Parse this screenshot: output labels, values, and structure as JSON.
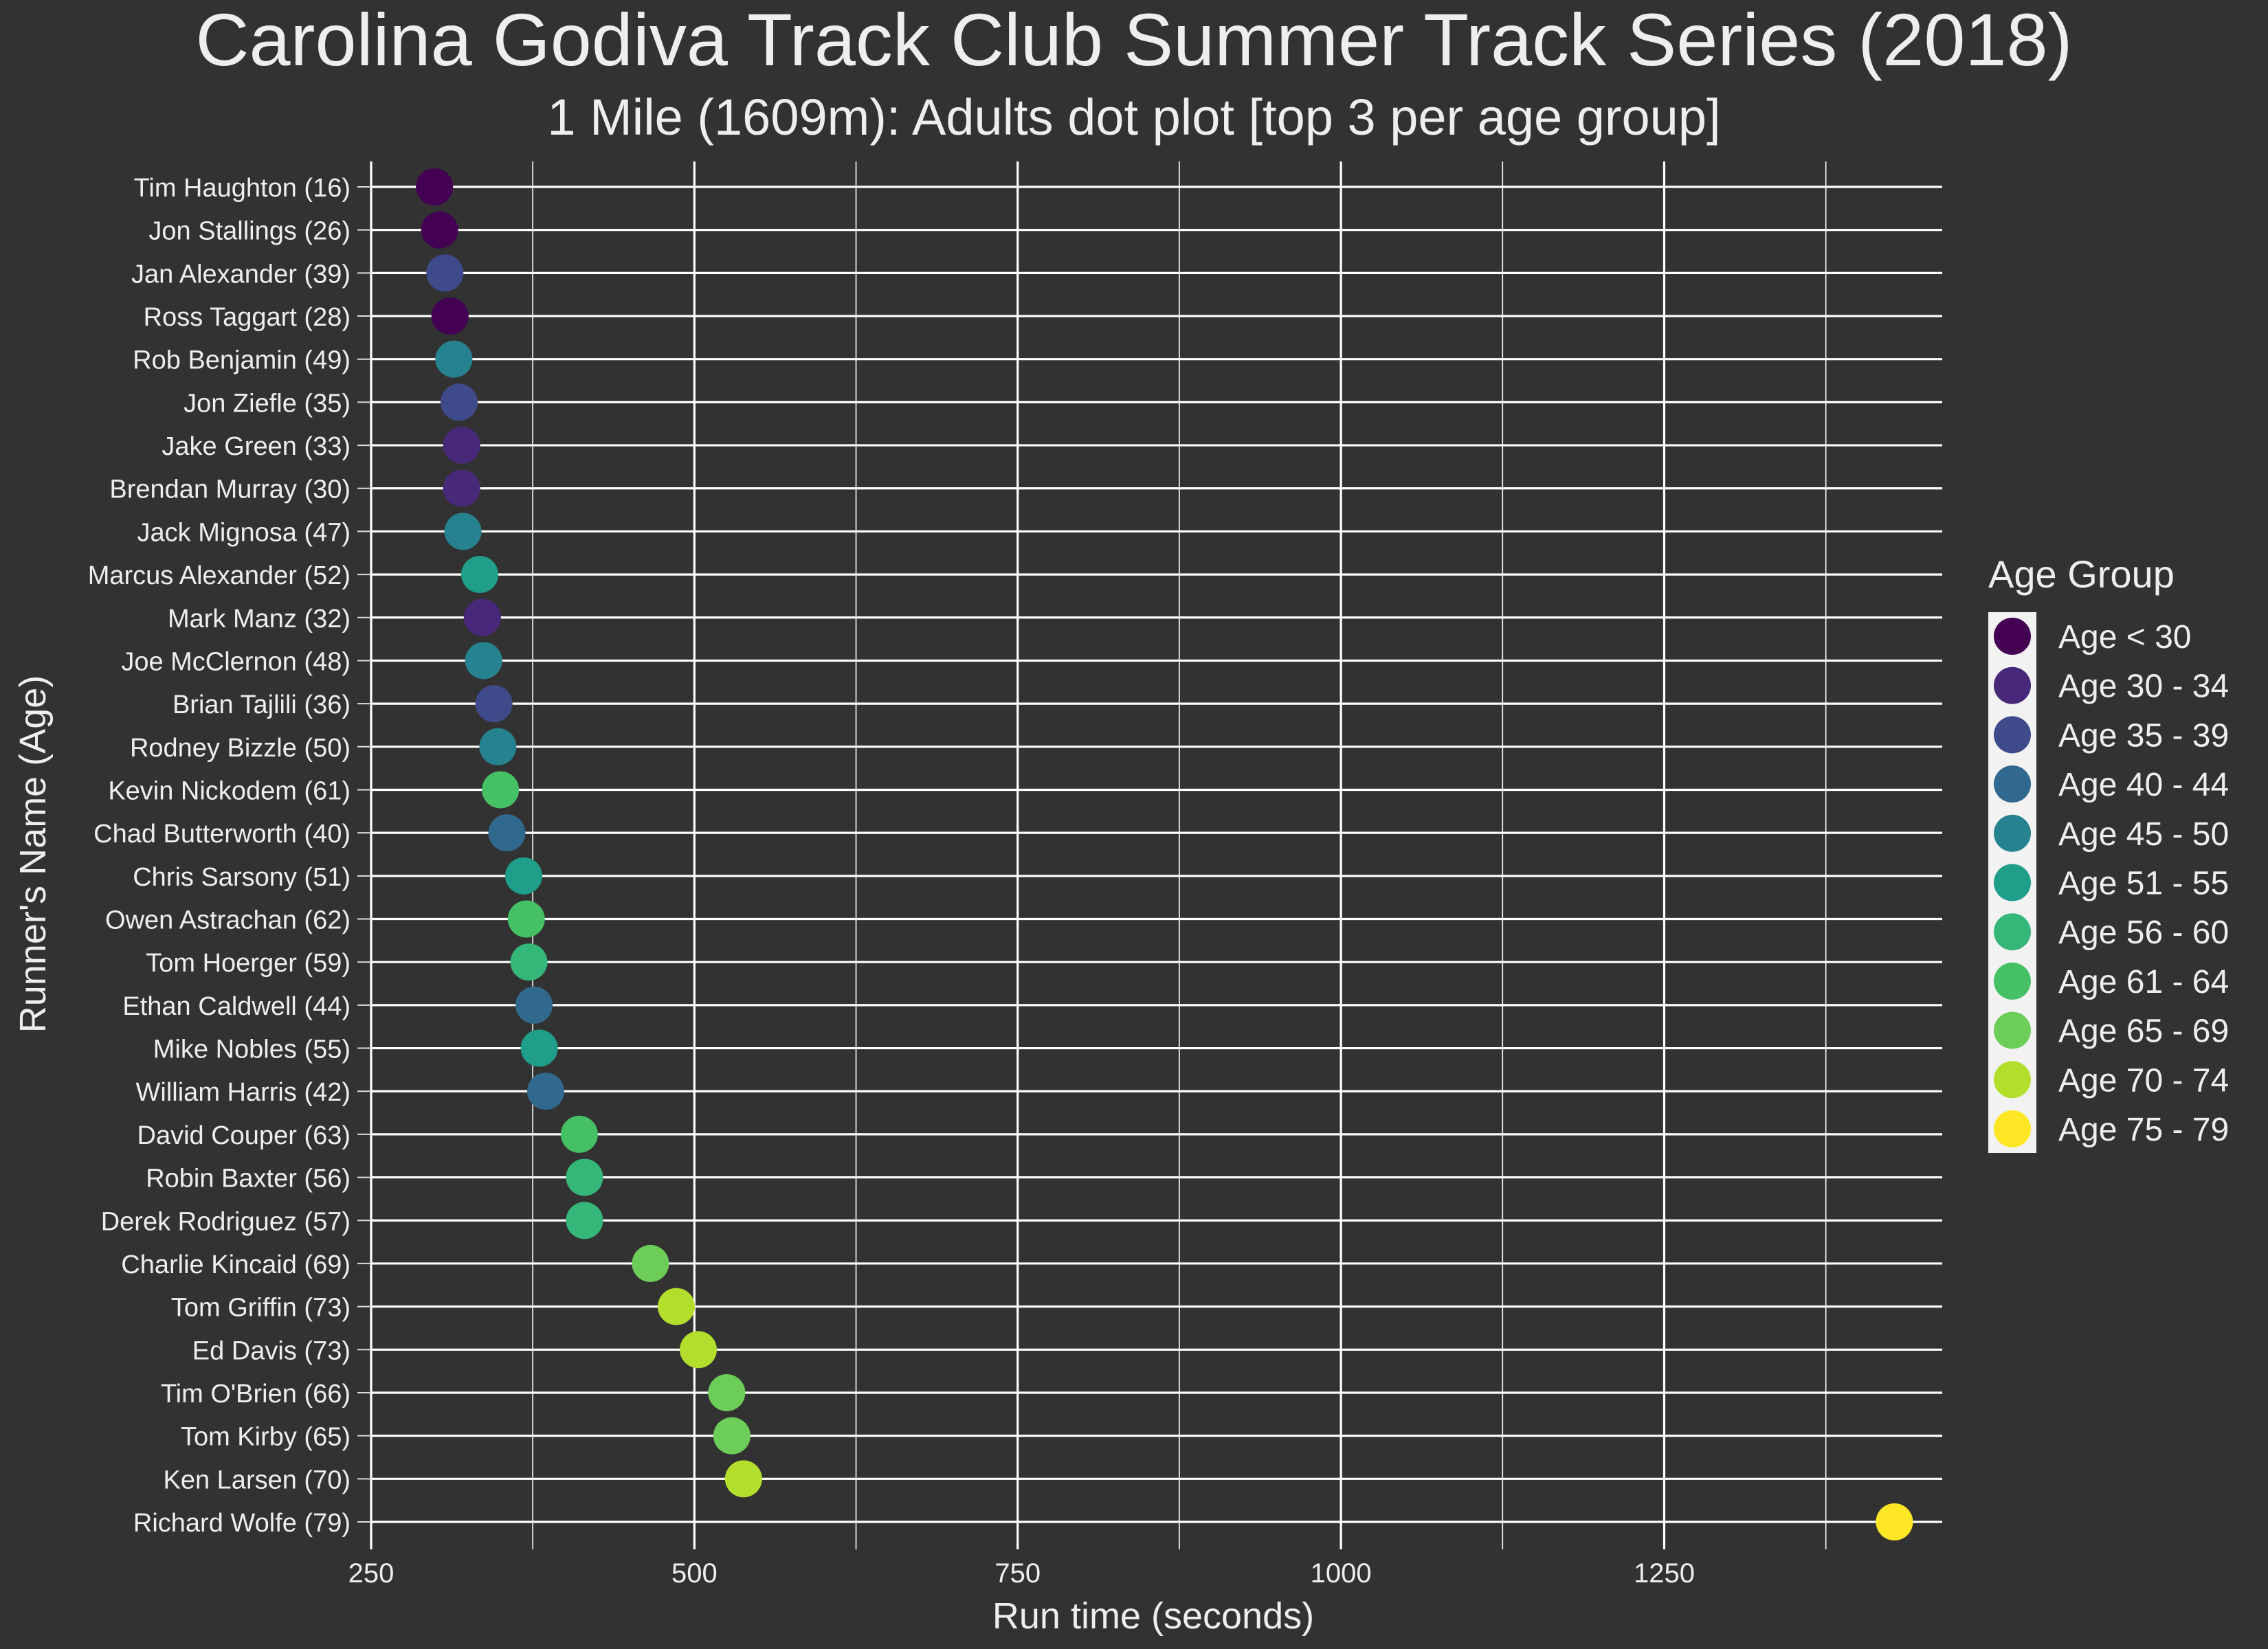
{
  "chart_data": {
    "type": "scatter",
    "title": "Carolina Godiva Track Club Summer Track Series (2018)",
    "subtitle": "1 Mile (1609m): Adults dot plot [top 3 per age group]",
    "xlabel": "Run time (seconds)",
    "ylabel": "Runner's Name (Age)",
    "xlim": [
      250,
      1465
    ],
    "xticks": [
      250,
      500,
      750,
      1000,
      1250
    ],
    "grid": true,
    "legend": {
      "title": "Age Group",
      "position": "right",
      "entries": [
        {
          "label": "Age < 30",
          "color": "#440154"
        },
        {
          "label": "Age 30 - 34",
          "color": "#482878"
        },
        {
          "label": "Age 35 - 39",
          "color": "#3E4A89"
        },
        {
          "label": "Age 40 - 44",
          "color": "#31688E"
        },
        {
          "label": "Age 45 - 50",
          "color": "#26828E"
        },
        {
          "label": "Age 51 - 55",
          "color": "#1F9E89"
        },
        {
          "label": "Age 56 - 60",
          "color": "#35B779"
        },
        {
          "label": "Age 61 - 64",
          "color": "#45C065"
        },
        {
          "label": "Age 65 - 69",
          "color": "#6DCD59"
        },
        {
          "label": "Age 70 - 74",
          "color": "#B4DE2C"
        },
        {
          "label": "Age 75 - 79",
          "color": "#FDE725"
        }
      ]
    },
    "points": [
      {
        "name": "Tim Haughton (16)",
        "x": 299,
        "group": "Age < 30"
      },
      {
        "name": "Jon Stallings (26)",
        "x": 303,
        "group": "Age < 30"
      },
      {
        "name": "Jan Alexander (39)",
        "x": 307,
        "group": "Age 35 - 39"
      },
      {
        "name": "Ross Taggart (28)",
        "x": 311,
        "group": "Age < 30"
      },
      {
        "name": "Rob Benjamin (49)",
        "x": 314,
        "group": "Age 45 - 50"
      },
      {
        "name": "Jon Ziefle (35)",
        "x": 318,
        "group": "Age 35 - 39"
      },
      {
        "name": "Jake Green (33)",
        "x": 320,
        "group": "Age 30 - 34"
      },
      {
        "name": "Brendan Murray (30)",
        "x": 320,
        "group": "Age 30 - 34"
      },
      {
        "name": "Jack Mignosa (47)",
        "x": 321,
        "group": "Age 45 - 50"
      },
      {
        "name": "Marcus Alexander (52)",
        "x": 334,
        "group": "Age 51 - 55"
      },
      {
        "name": "Mark Manz (32)",
        "x": 336,
        "group": "Age 30 - 34"
      },
      {
        "name": "Joe McClernon (48)",
        "x": 337,
        "group": "Age 45 - 50"
      },
      {
        "name": "Brian Tajlili (36)",
        "x": 345,
        "group": "Age 35 - 39"
      },
      {
        "name": "Rodney Bizzle (50)",
        "x": 348,
        "group": "Age 45 - 50"
      },
      {
        "name": "Kevin Nickodem (61)",
        "x": 350,
        "group": "Age 61 - 64"
      },
      {
        "name": "Chad Butterworth (40)",
        "x": 355,
        "group": "Age 40 - 44"
      },
      {
        "name": "Chris Sarsony (51)",
        "x": 368,
        "group": "Age 51 - 55"
      },
      {
        "name": "Owen Astrachan (62)",
        "x": 370,
        "group": "Age 61 - 64"
      },
      {
        "name": "Tom Hoerger (59)",
        "x": 372,
        "group": "Age 56 - 60"
      },
      {
        "name": "Ethan Caldwell (44)",
        "x": 376,
        "group": "Age 40 - 44"
      },
      {
        "name": "Mike Nobles (55)",
        "x": 380,
        "group": "Age 51 - 55"
      },
      {
        "name": "William Harris (42)",
        "x": 385,
        "group": "Age 40 - 44"
      },
      {
        "name": "David Couper (63)",
        "x": 411,
        "group": "Age 61 - 64"
      },
      {
        "name": "Robin Baxter (56)",
        "x": 415,
        "group": "Age 56 - 60"
      },
      {
        "name": "Derek Rodriguez (57)",
        "x": 415,
        "group": "Age 56 - 60"
      },
      {
        "name": "Charlie Kincaid (69)",
        "x": 466,
        "group": "Age 65 - 69"
      },
      {
        "name": "Tom Griffin (73)",
        "x": 486,
        "group": "Age 70 - 74"
      },
      {
        "name": "Ed Davis (73)",
        "x": 503,
        "group": "Age 70 - 74"
      },
      {
        "name": "Tim O'Brien (66)",
        "x": 525,
        "group": "Age 65 - 69"
      },
      {
        "name": "Tom Kirby (65)",
        "x": 529,
        "group": "Age 65 - 69"
      },
      {
        "name": "Ken Larsen (70)",
        "x": 538,
        "group": "Age 70 - 74"
      },
      {
        "name": "Richard Wolfe (79)",
        "x": 1428,
        "group": "Age 75 - 79"
      }
    ]
  }
}
